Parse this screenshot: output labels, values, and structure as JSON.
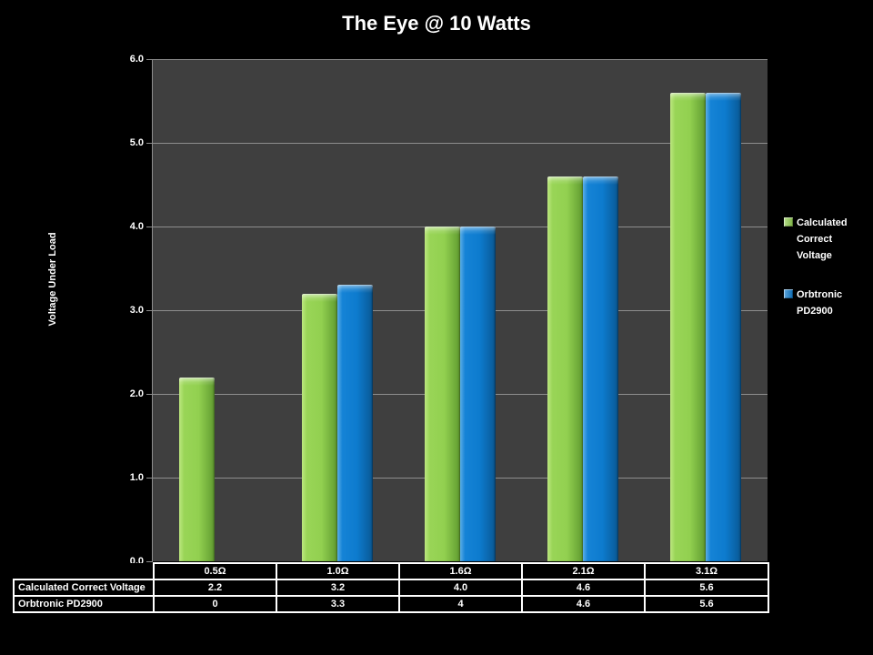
{
  "title": "The Eye @ 10 Watts",
  "colors": {
    "background": "#000000",
    "plot_background": "#3F3F3F",
    "gridline": "#8E8E8E",
    "axis_line": "#8E8E8E",
    "text": "#FFFFFF",
    "table_border": "#FFFFFF",
    "series_green": "#92D050",
    "series_blue": "#0D7BCE"
  },
  "chart_data": {
    "type": "bar",
    "title": "The Eye @ 10 Watts",
    "xlabel": "",
    "ylabel": "Voltage Under Load",
    "ylim": [
      0.0,
      6.0
    ],
    "ytick_interval": 1.0,
    "ytick_labels": [
      "0.0",
      "1.0",
      "2.0",
      "3.0",
      "4.0",
      "5.0",
      "6.0"
    ],
    "grid": "horizontal",
    "legend_position": "right",
    "data_table_shown": true,
    "categories": [
      "0.5Ω",
      "1.0Ω",
      "1.6Ω",
      "2.1Ω",
      "3.1Ω"
    ],
    "series": [
      {
        "name": "Calculated Correct Voltage",
        "slug": "calculated-correct-voltage",
        "color": "#92D050",
        "values": [
          2.2,
          3.2,
          4.0,
          4.6,
          5.6
        ],
        "table_labels": [
          "2.2",
          "3.2",
          "4.0",
          "4.6",
          "5.6"
        ]
      },
      {
        "name": "Orbtronic PD2900",
        "slug": "orbtronic-pd2900",
        "color": "#0D7BCE",
        "values": [
          0,
          3.3,
          4,
          4.6,
          5.6
        ],
        "table_labels": [
          "0",
          "3.3",
          "4",
          "4.6",
          "5.6"
        ]
      }
    ]
  }
}
